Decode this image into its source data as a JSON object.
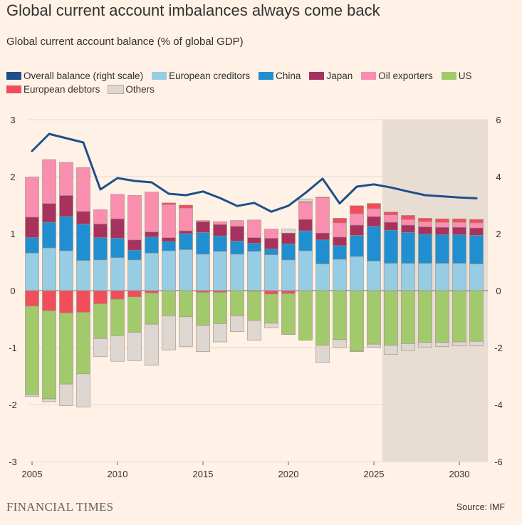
{
  "header": {
    "title": "Global current account imbalances always come back",
    "subtitle": "Global current account balance (% of global GDP)"
  },
  "footer": {
    "brand": "FINANCIAL TIMES",
    "source": "Source: IMF"
  },
  "colors": {
    "background": "#fff1e5",
    "forecast_shade": "#e8ddd3",
    "zero_line": "#8a8580",
    "bar_outline": "#9c8e86"
  },
  "chart_data": {
    "type": "bar",
    "stacked": true,
    "title": "Global current account imbalances always come back",
    "subtitle": "Global current account balance (% of global GDP)",
    "xlabel": "",
    "ylabel": "",
    "x": [
      2005,
      2006,
      2007,
      2008,
      2009,
      2010,
      2011,
      2012,
      2013,
      2014,
      2015,
      2016,
      2017,
      2018,
      2019,
      2020,
      2021,
      2022,
      2023,
      2024,
      2025,
      2026,
      2027,
      2028,
      2029,
      2030,
      2031
    ],
    "x_ticks": [
      2005,
      2010,
      2015,
      2020,
      2025,
      2030
    ],
    "ylim": [
      -3,
      3
    ],
    "y_ticks": [
      -3,
      -2,
      -1,
      0,
      1,
      2,
      3
    ],
    "y2lim": [
      -6,
      6
    ],
    "y2_ticks": [
      -6,
      -4,
      -2,
      0,
      2,
      4,
      6
    ],
    "grid": true,
    "legend_position": "top",
    "forecast_shade_from": 2025.5,
    "series": [
      {
        "name": "European creditors",
        "color": "#96cce4",
        "values": [
          0.66,
          0.75,
          0.7,
          0.53,
          0.54,
          0.58,
          0.54,
          0.66,
          0.7,
          0.72,
          0.64,
          0.69,
          0.64,
          0.69,
          0.63,
          0.54,
          0.7,
          0.47,
          0.55,
          0.6,
          0.52,
          0.48,
          0.48,
          0.48,
          0.48,
          0.48,
          0.47
        ]
      },
      {
        "name": "China",
        "color": "#1f8fd2",
        "values": [
          0.27,
          0.45,
          0.6,
          0.64,
          0.39,
          0.34,
          0.17,
          0.28,
          0.16,
          0.28,
          0.38,
          0.27,
          0.23,
          0.14,
          0.1,
          0.28,
          0.35,
          0.42,
          0.24,
          0.37,
          0.61,
          0.58,
          0.54,
          0.51,
          0.5,
          0.5,
          0.5
        ]
      },
      {
        "name": "Japan",
        "color": "#a8325e",
        "values": [
          0.36,
          0.33,
          0.37,
          0.22,
          0.24,
          0.34,
          0.18,
          0.09,
          0.07,
          0.05,
          0.19,
          0.2,
          0.26,
          0.1,
          0.19,
          0.19,
          0.2,
          0.12,
          0.15,
          0.18,
          0.17,
          0.14,
          0.13,
          0.13,
          0.13,
          0.13,
          0.13
        ]
      },
      {
        "name": "Oil exporters",
        "color": "#fa8eaf",
        "values": [
          0.7,
          0.77,
          0.58,
          0.77,
          0.25,
          0.43,
          0.78,
          0.7,
          0.58,
          0.4,
          0.02,
          0.05,
          0.1,
          0.31,
          0.16,
          0.0,
          0.3,
          0.62,
          0.25,
          0.2,
          0.14,
          0.13,
          0.1,
          0.09,
          0.09,
          0.09,
          0.09
        ]
      },
      {
        "name": "European debtors",
        "color": "#f04e5a",
        "values": [
          -0.27,
          -0.35,
          -0.39,
          -0.38,
          -0.23,
          -0.15,
          -0.11,
          -0.04,
          0.03,
          0.05,
          -0.03,
          -0.03,
          0.0,
          -0.01,
          -0.06,
          -0.05,
          0.01,
          0.01,
          0.08,
          0.14,
          0.09,
          0.05,
          0.07,
          0.06,
          0.06,
          0.06,
          0.06
        ]
      },
      {
        "name": "US",
        "color": "#a2c96b",
        "values": [
          -1.55,
          -1.55,
          -1.25,
          -1.08,
          -0.61,
          -0.64,
          -0.62,
          -0.55,
          -0.44,
          -0.46,
          -0.58,
          -0.55,
          -0.44,
          -0.51,
          -0.51,
          -0.72,
          -0.87,
          -0.96,
          -0.86,
          -1.06,
          -0.94,
          -0.96,
          -0.93,
          -0.91,
          -0.91,
          -0.9,
          -0.89
        ]
      },
      {
        "name": "Others",
        "color": "#ded6d1",
        "values": [
          -0.04,
          -0.05,
          -0.38,
          -0.58,
          -0.32,
          -0.45,
          -0.5,
          -0.72,
          -0.6,
          -0.52,
          -0.46,
          -0.32,
          -0.28,
          -0.35,
          -0.08,
          0.07,
          0.05,
          -0.3,
          -0.14,
          -0.01,
          -0.05,
          -0.16,
          -0.12,
          -0.08,
          -0.07,
          -0.07,
          -0.08
        ]
      },
      {
        "name": "Overall balance (right scale)",
        "color": "#1e4f8c",
        "type": "line",
        "axis": "right",
        "values": [
          4.9,
          5.5,
          5.35,
          5.2,
          3.55,
          3.95,
          3.85,
          3.8,
          3.4,
          3.35,
          3.48,
          3.25,
          2.97,
          3.08,
          2.77,
          2.98,
          3.43,
          3.93,
          3.06,
          3.65,
          3.73,
          3.62,
          3.48,
          3.35,
          3.31,
          3.27,
          3.24
        ]
      }
    ]
  }
}
